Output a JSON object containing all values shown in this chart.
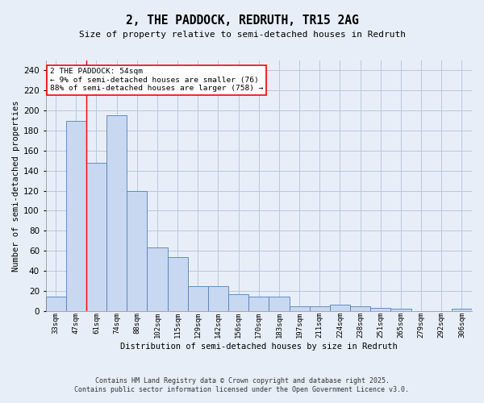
{
  "title": "2, THE PADDOCK, REDRUTH, TR15 2AG",
  "subtitle": "Size of property relative to semi-detached houses in Redruth",
  "xlabel": "Distribution of semi-detached houses by size in Redruth",
  "ylabel": "Number of semi-detached properties",
  "categories": [
    "33sqm",
    "47sqm",
    "61sqm",
    "74sqm",
    "88sqm",
    "102sqm",
    "115sqm",
    "129sqm",
    "142sqm",
    "156sqm",
    "170sqm",
    "183sqm",
    "197sqm",
    "211sqm",
    "224sqm",
    "238sqm",
    "251sqm",
    "265sqm",
    "279sqm",
    "292sqm",
    "306sqm"
  ],
  "values": [
    14,
    190,
    148,
    195,
    120,
    63,
    54,
    25,
    25,
    17,
    14,
    14,
    5,
    5,
    6,
    5,
    3,
    2,
    0,
    0,
    2
  ],
  "bar_color": "#c8d8f0",
  "bar_edge_color": "#5080b8",
  "grid_color": "#b8c8e0",
  "background_color": "#e8eef8",
  "annotation_text": "2 THE PADDOCK: 54sqm\n← 9% of semi-detached houses are smaller (76)\n88% of semi-detached houses are larger (758) →",
  "annotation_box_color": "white",
  "annotation_box_edge": "red",
  "red_line_x": 1.5,
  "ylim": [
    0,
    250
  ],
  "yticks": [
    0,
    20,
    40,
    60,
    80,
    100,
    120,
    140,
    160,
    180,
    200,
    220,
    240
  ],
  "footer_line1": "Contains HM Land Registry data © Crown copyright and database right 2025.",
  "footer_line2": "Contains public sector information licensed under the Open Government Licence v3.0."
}
